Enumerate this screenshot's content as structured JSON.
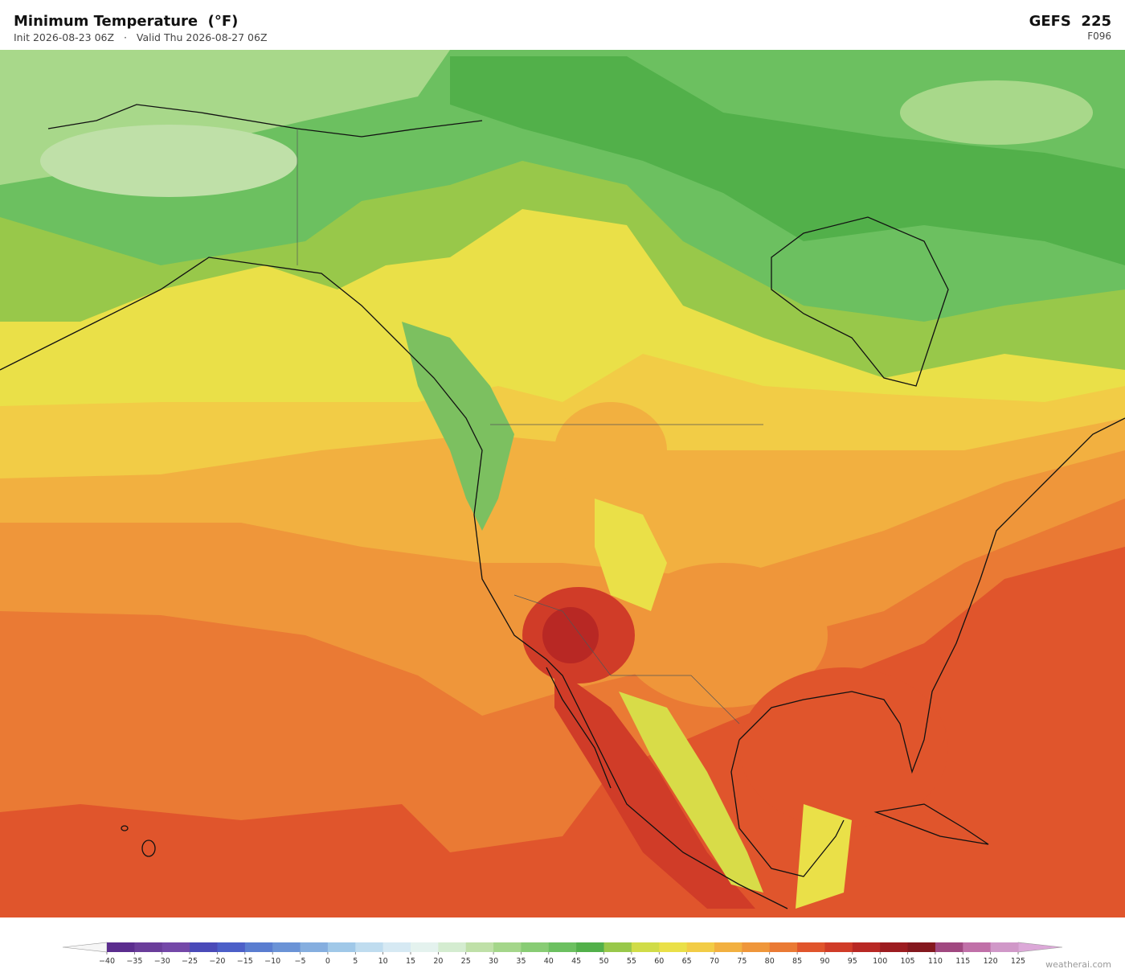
{
  "header": {
    "title": "Minimum Temperature  (°F)",
    "init": "Init 2026-08-23 06Z",
    "separator": "·",
    "valid": "Valid Thu 2026-08-27 06Z",
    "model": "GEFS  225",
    "forecast_hour": "F096"
  },
  "colorbar": {
    "levels": [
      {
        "value": -40,
        "label": "−40"
      },
      {
        "value": -35,
        "label": "−35"
      },
      {
        "value": -30,
        "label": "−30"
      },
      {
        "value": -25,
        "label": "−25"
      },
      {
        "value": -20,
        "label": "−20"
      },
      {
        "value": -15,
        "label": "−15"
      },
      {
        "value": -10,
        "label": "−10"
      },
      {
        "value": -5,
        "label": "−5"
      },
      0,
      5,
      10,
      15,
      20,
      25,
      30,
      35,
      40,
      45,
      50,
      55,
      60,
      65,
      70,
      75,
      80,
      85,
      90,
      95,
      100,
      105,
      110,
      115,
      120,
      125
    ],
    "colors": [
      "#5b2d8e",
      "#6a3d9a",
      "#7448a8",
      "#4a4ab8",
      "#4c5fc8",
      "#5a7dd0",
      "#6b93d6",
      "#85aedf",
      "#a0c8e8",
      "#bfdcef",
      "#d6e9f3",
      "#e4f2ee",
      "#d4ecd0",
      "#bfe0a8",
      "#a4d68a",
      "#88cc74",
      "#6cc060",
      "#52b04a",
      "#98c84a",
      "#d0dc48",
      "#eae048",
      "#f2cc46",
      "#f2b040",
      "#ef963a",
      "#ea7a34",
      "#e0552c",
      "#d03c28",
      "#b82824",
      "#9c1c20",
      "#84181e",
      "#a04880",
      "#c070a8",
      "#d098c8"
    ],
    "under_color": "#f6f6f6",
    "over_color": "#dca8d8"
  },
  "brand": "weatherai.com"
}
